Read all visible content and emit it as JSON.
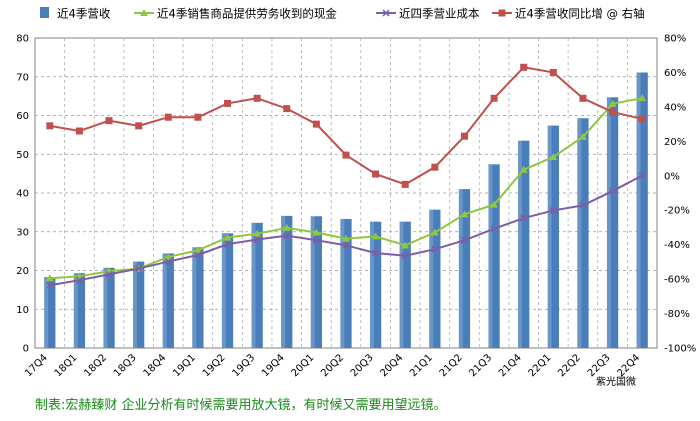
{
  "chart_data": {
    "type": "bar",
    "categories": [
      "17Q4",
      "18Q1",
      "18Q2",
      "18Q3",
      "18Q4",
      "19Q1",
      "19Q2",
      "19Q3",
      "19Q4",
      "20Q1",
      "20Q2",
      "20Q3",
      "20Q4",
      "21Q1",
      "21Q2",
      "21Q3",
      "21Q4",
      "22Q1",
      "22Q2",
      "22Q3",
      "22Q4"
    ],
    "series": [
      {
        "name": "近4季营收",
        "kind": "bar",
        "axis": "left",
        "color": "#4a7ebb",
        "values": [
          18.3,
          19.3,
          20.7,
          22.3,
          24.4,
          26.0,
          29.6,
          32.3,
          34.1,
          34.0,
          33.3,
          32.6,
          32.6,
          35.7,
          41.0,
          47.4,
          53.5,
          57.4,
          59.3,
          64.7,
          71.1
        ]
      },
      {
        "name": "近4季销售商品提供劳务收到的现金",
        "kind": "line",
        "axis": "left",
        "color": "#8fc73e",
        "marker": "triangle",
        "values": [
          18.0,
          18.5,
          19.8,
          20.5,
          23.5,
          25.2,
          28.5,
          29.5,
          31.0,
          29.8,
          28.2,
          28.8,
          26.5,
          29.8,
          34.5,
          37.0,
          46.0,
          49.3,
          54.5,
          63.0,
          64.5
        ]
      },
      {
        "name": "近四季营业成本",
        "kind": "line",
        "axis": "left",
        "color": "#7b5ea7",
        "marker": "x",
        "values": [
          16.2,
          17.5,
          19.0,
          20.5,
          22.3,
          24.0,
          26.8,
          28.0,
          29.0,
          27.8,
          26.5,
          24.5,
          23.8,
          25.5,
          27.8,
          30.8,
          33.5,
          35.5,
          36.8,
          40.5,
          44.5
        ]
      },
      {
        "name": "近4季营收同比增 @ 右轴",
        "kind": "line",
        "axis": "right",
        "color": "#c0504d",
        "marker": "square",
        "values": [
          29,
          26,
          32,
          29,
          34,
          34,
          42,
          45,
          39,
          30,
          12,
          1,
          -5,
          5,
          23,
          45,
          63,
          60,
          45,
          37,
          33
        ]
      }
    ],
    "y_left": {
      "ylim": [
        0,
        80
      ],
      "ticks": [
        0,
        10,
        20,
        30,
        40,
        50,
        60,
        70,
        80
      ]
    },
    "y_right": {
      "ylim": [
        -100,
        80
      ],
      "ticks": [
        "80%",
        "60%",
        "40%",
        "20%",
        "0%",
        "-20%",
        "-40%",
        "-60%",
        "-80%",
        "-100%"
      ],
      "values": [
        80,
        60,
        40,
        20,
        0,
        -20,
        -40,
        -60,
        -80,
        -100
      ]
    },
    "legend": {
      "position": "top"
    },
    "grid": true,
    "watermark": "紫光国微"
  },
  "footer": {
    "text": "制表:宏赫臻财      企业分析有时候需要用放大镜，有时候又需要用望远镜。"
  }
}
